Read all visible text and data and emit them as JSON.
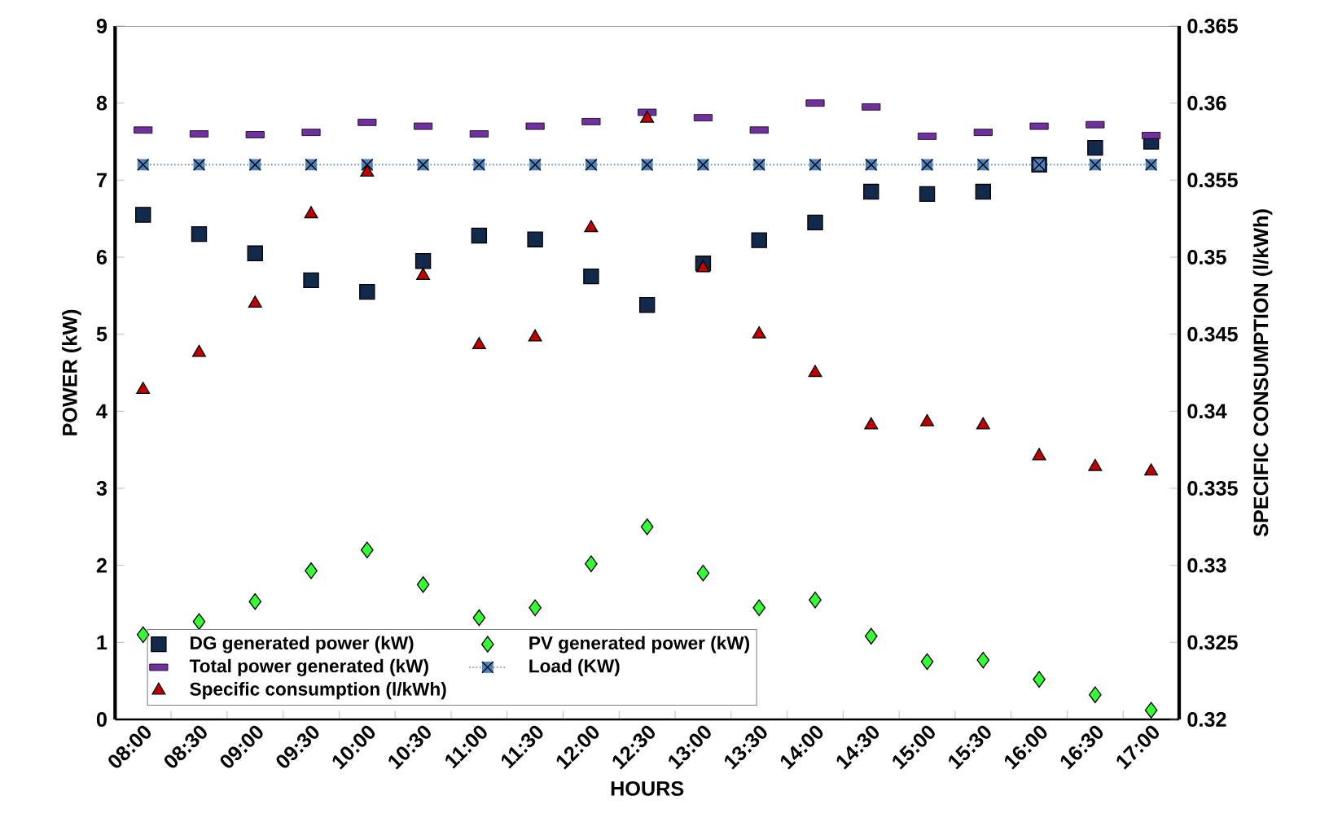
{
  "chart_data": {
    "type": "scatter",
    "xlabel": "HOURS",
    "ylabel": "POWER (kW)",
    "y2label": "SPECIFIC CONSUMPTION (l/kWh)",
    "categories": [
      "08:00",
      "08:30",
      "09:00",
      "09:30",
      "10:00",
      "10:30",
      "11:00",
      "11:30",
      "12:00",
      "12:30",
      "13:00",
      "13:30",
      "14:00",
      "14:30",
      "15:00",
      "15:30",
      "16:00",
      "16:30",
      "17:00"
    ],
    "ylim": [
      0,
      9
    ],
    "yticks": [
      0,
      1,
      2,
      3,
      4,
      5,
      6,
      7,
      8,
      9
    ],
    "y2lim": [
      0.32,
      0.365
    ],
    "y2ticks": [
      0.32,
      0.325,
      0.33,
      0.335,
      0.34,
      0.345,
      0.35,
      0.355,
      0.36,
      0.365
    ],
    "grid": false,
    "legend": "bottom left",
    "series": [
      {
        "name": "DG generated power (kW)",
        "marker": "square",
        "color": "#13294b",
        "values": [
          6.55,
          6.3,
          6.05,
          5.7,
          5.55,
          5.95,
          6.28,
          6.23,
          5.75,
          5.38,
          5.92,
          6.22,
          6.45,
          6.85,
          6.82,
          6.85,
          7.2,
          7.42,
          7.5
        ]
      },
      {
        "name": "PV generated power (kW)",
        "marker": "diamond",
        "color": "#33ff33",
        "values": [
          1.1,
          1.27,
          1.53,
          1.93,
          2.2,
          1.75,
          1.32,
          1.45,
          2.02,
          2.5,
          1.9,
          1.45,
          1.55,
          1.08,
          0.75,
          0.77,
          0.52,
          0.32,
          0.12
        ]
      },
      {
        "name": "Total  power generated (kW)",
        "color": "#7030a0",
        "values": [
          7.65,
          7.6,
          7.59,
          7.62,
          7.75,
          7.7,
          7.6,
          7.7,
          7.76,
          7.88,
          7.81,
          7.65,
          8.0,
          7.95,
          7.57,
          7.62,
          7.7,
          7.72,
          7.58
        ]
      },
      {
        "name": "Load (KW)",
        "type": "line",
        "marker": "square",
        "line_style": "dotted",
        "color": "#4f81bd",
        "values": [
          7.2,
          7.2,
          7.2,
          7.2,
          7.2,
          7.2,
          7.2,
          7.2,
          7.2,
          7.2,
          7.2,
          7.2,
          7.2,
          7.2,
          7.2,
          7.2,
          7.2,
          7.2,
          7.2
        ]
      },
      {
        "name": "Specific consumption (l/kWh)",
        "axis": "y2",
        "marker": "triangle",
        "color": "#c00000",
        "values": [
          0.3414,
          0.3438,
          0.347,
          0.3528,
          0.3555,
          0.3488,
          0.3443,
          0.3448,
          0.3519,
          0.359,
          0.3493,
          0.345,
          0.3425,
          0.3391,
          0.3393,
          0.3391,
          0.3371,
          0.3364,
          0.3361
        ]
      }
    ]
  }
}
